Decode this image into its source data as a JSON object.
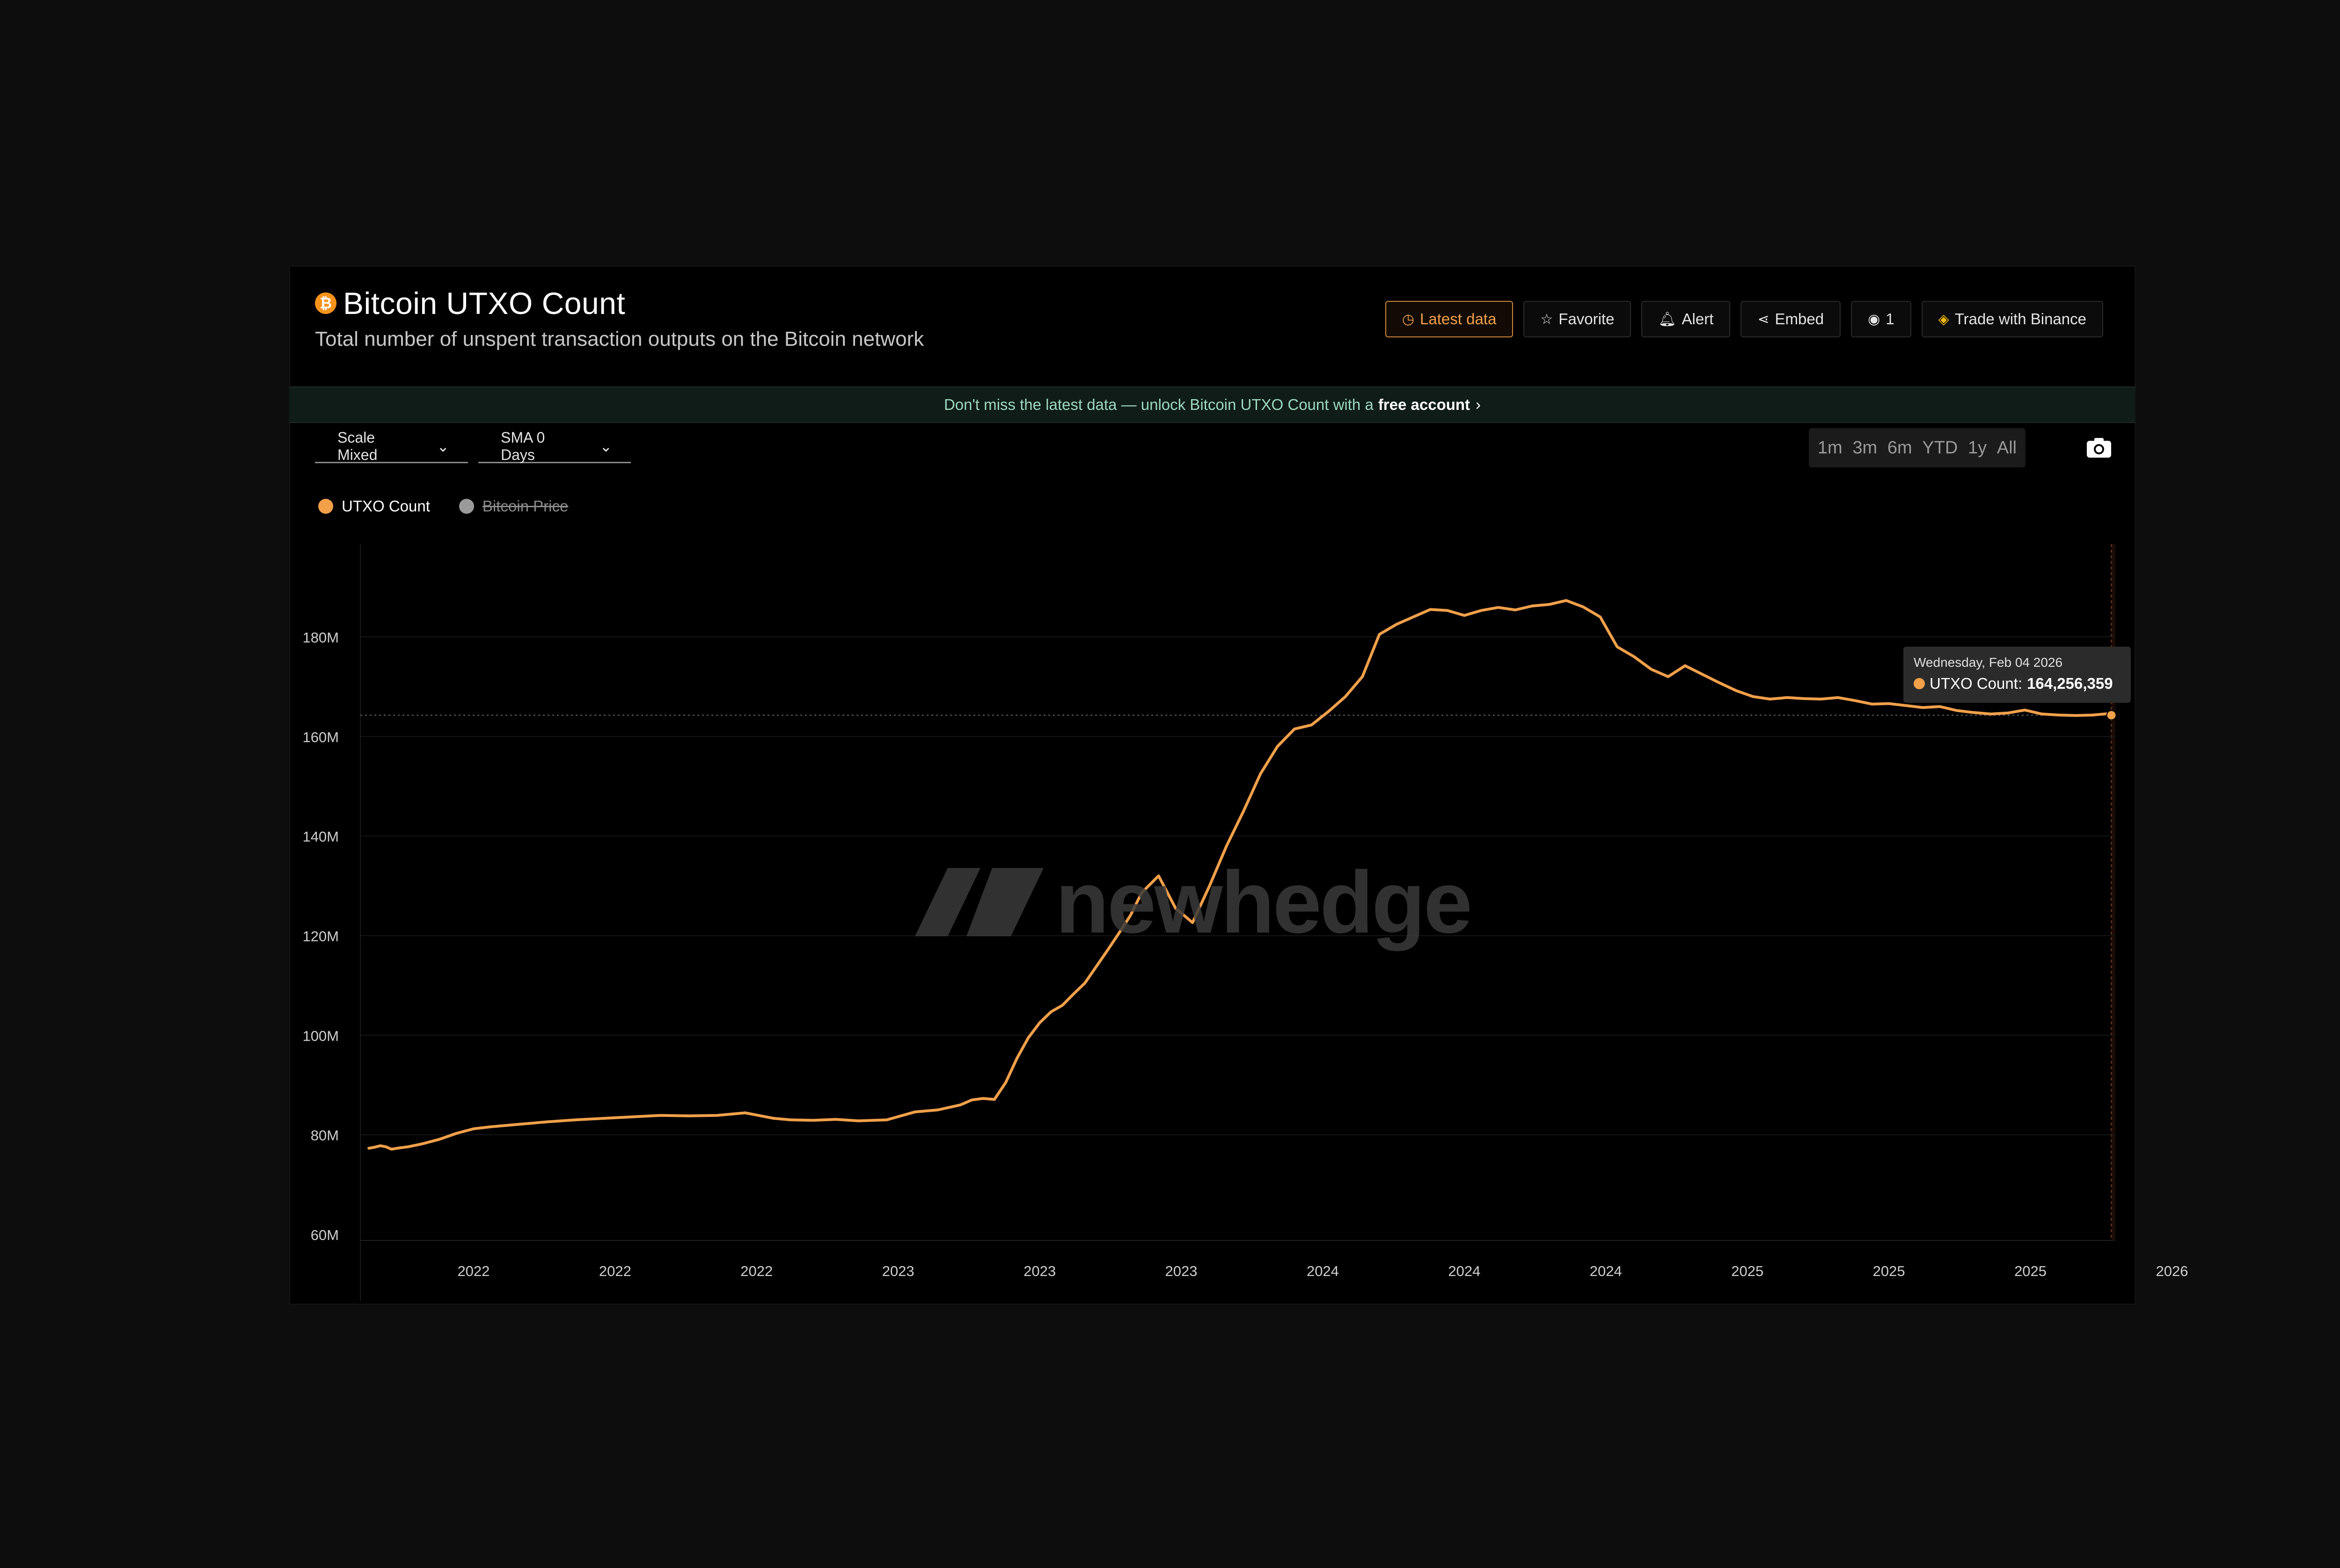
{
  "header": {
    "coin_symbol": "₿",
    "title": "Bitcoin UTXO Count",
    "subtitle": "Total number of unspent transaction outputs on the Bitcoin network"
  },
  "actions": {
    "latest_data": "Latest data",
    "favorite": "Favorite",
    "alert": "Alert",
    "embed": "Embed",
    "views": "1",
    "trade": "Trade with Binance"
  },
  "banner": {
    "text": "Don't miss the latest data — unlock Bitcoin UTXO Count with a",
    "link": "free account"
  },
  "controls": {
    "scale": "Scale Mixed",
    "sma": "SMA 0 Days",
    "ranges": [
      "1m",
      "3m",
      "6m",
      "YTD",
      "1y",
      "All"
    ]
  },
  "legend": {
    "series1": "UTXO Count",
    "series2": "Bitcoin Price"
  },
  "tooltip": {
    "date": "Wednesday, Feb 04 2026",
    "label": "UTXO Count:",
    "value": "164,256,359"
  },
  "watermark": "newhedge",
  "colors": {
    "line": "#f2a04a",
    "accent": "#f7931a",
    "muted_series": "#9a9a9a"
  },
  "chart_data": {
    "type": "line",
    "title": "Bitcoin UTXO Count",
    "xlabel": "",
    "ylabel": "",
    "ylim": [
      60,
      200
    ],
    "y_unit": "M",
    "y_ticks": [
      "60M",
      "80M",
      "100M",
      "120M",
      "140M",
      "160M",
      "180M"
    ],
    "y_tick_values": [
      60,
      80,
      100,
      120,
      140,
      160,
      180
    ],
    "x_tick_labels": [
      "2022",
      "2022",
      "2022",
      "2023",
      "2023",
      "2023",
      "2024",
      "2024",
      "2024",
      "2025",
      "2025",
      "2025",
      "2026"
    ],
    "x_tick_values": [
      2021.92,
      2022.17,
      2022.42,
      2022.67,
      2022.92,
      2023.17,
      2023.42,
      2023.67,
      2023.92,
      2024.17,
      2024.42,
      2024.67,
      2024.92
    ],
    "xlim": [
      2021.72,
      2024.82
    ],
    "xlim_note": "",
    "reference_line": 164.26,
    "grid": true,
    "legend_position": "top-left",
    "series": [
      {
        "name": "UTXO Count",
        "x": [
          2021.735,
          2021.745,
          2021.755,
          2021.765,
          2021.775,
          2021.785,
          2021.805,
          2021.83,
          2021.86,
          2021.89,
          2021.92,
          2021.95,
          2022.0,
          2022.05,
          2022.1,
          2022.15,
          2022.2,
          2022.25,
          2022.3,
          2022.35,
          2022.4,
          2022.45,
          2022.48,
          2022.52,
          2022.56,
          2022.6,
          2022.65,
          2022.7,
          2022.74,
          2022.78,
          2022.8,
          2022.82,
          2022.84,
          2022.86,
          2022.88,
          2022.9,
          2022.92,
          2022.94,
          2022.96,
          2022.98,
          2023.0,
          2023.02,
          2023.04,
          2023.06,
          2023.08,
          2023.1,
          2023.13,
          2023.16,
          2023.19,
          2023.22,
          2023.25,
          2023.28,
          2023.31,
          2023.34,
          2023.37,
          2023.4,
          2023.43,
          2023.46,
          2023.49,
          2023.52,
          2023.55,
          2023.58,
          2023.61,
          2023.64,
          2023.67,
          2023.7,
          2023.73,
          2023.76,
          2023.79,
          2023.82,
          2023.85,
          2023.88,
          2023.91,
          2023.94,
          2023.97,
          2024.0,
          2024.03,
          2024.06,
          2024.09,
          2024.12,
          2024.15,
          2024.18,
          2024.21,
          2024.24,
          2024.27,
          2024.3,
          2024.33,
          2024.36,
          2024.39,
          2024.42,
          2024.45,
          2024.48,
          2024.51,
          2024.54,
          2024.57,
          2024.6,
          2024.63,
          2024.66,
          2024.69,
          2024.72,
          2024.75,
          2024.78,
          2024.81,
          2024.813
        ],
        "y": [
          77.3,
          77.5,
          77.8,
          77.6,
          77.1,
          77.3,
          77.6,
          78.2,
          79.1,
          80.3,
          81.2,
          81.6,
          82.1,
          82.6,
          83.0,
          83.3,
          83.6,
          83.9,
          83.8,
          83.9,
          84.4,
          83.3,
          83.0,
          82.9,
          83.1,
          82.8,
          83.0,
          84.6,
          85.0,
          86.0,
          87.0,
          87.3,
          87.1,
          90.5,
          95.4,
          99.5,
          102.5,
          104.7,
          106.0,
          108.3,
          110.5,
          113.8,
          117.1,
          120.5,
          124.0,
          128.6,
          132.0,
          125.5,
          122.6,
          130.0,
          138.0,
          145.0,
          152.5,
          158.0,
          161.5,
          162.3,
          165.0,
          168.0,
          172.0,
          180.5,
          182.5,
          184.0,
          185.5,
          185.3,
          184.3,
          185.3,
          185.9,
          185.4,
          186.2,
          186.5,
          187.3,
          186.0,
          184.0,
          178.0,
          176.0,
          173.5,
          172.0,
          174.2,
          172.5,
          170.8,
          169.2,
          168.0,
          167.5,
          167.8,
          167.6,
          167.5,
          167.8,
          167.2,
          166.5,
          166.6,
          166.2,
          165.8,
          166.0,
          165.2,
          164.8,
          164.5,
          164.7,
          165.3,
          164.5,
          164.3,
          164.2,
          164.3,
          164.6,
          164.26
        ]
      },
      {
        "name": "Bitcoin Price",
        "hidden": true
      }
    ]
  }
}
